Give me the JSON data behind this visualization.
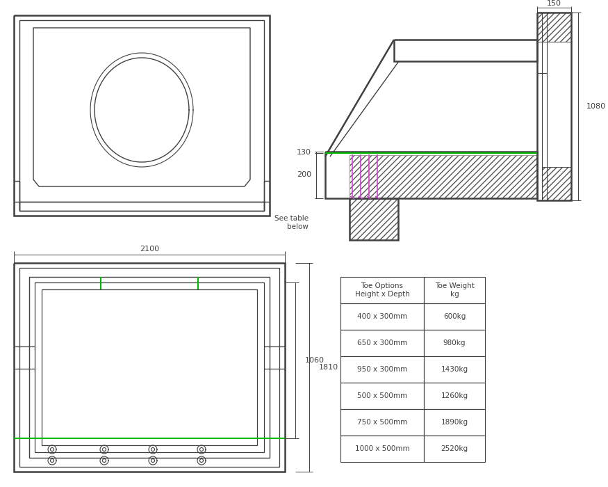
{
  "bg_color": "#ffffff",
  "line_color": "#404040",
  "green_color": "#00bb00",
  "magenta_color": "#cc44cc",
  "hatch_color": "#555555",
  "dim_color": "#404040",
  "figw": 8.75,
  "figh": 7.0,
  "dpi": 100,
  "table_data": [
    [
      "Toe Options\nHeight x Depth",
      "Toe Weight\nkg"
    ],
    [
      "400 x 300mm",
      "600kg"
    ],
    [
      "650 x 300mm",
      "980kg"
    ],
    [
      "950 x 300mm",
      "1430kg"
    ],
    [
      "500 x 500mm",
      "1260kg"
    ],
    [
      "750 x 500mm",
      "1890kg"
    ],
    [
      "1000 x 500mm",
      "2520kg"
    ]
  ]
}
